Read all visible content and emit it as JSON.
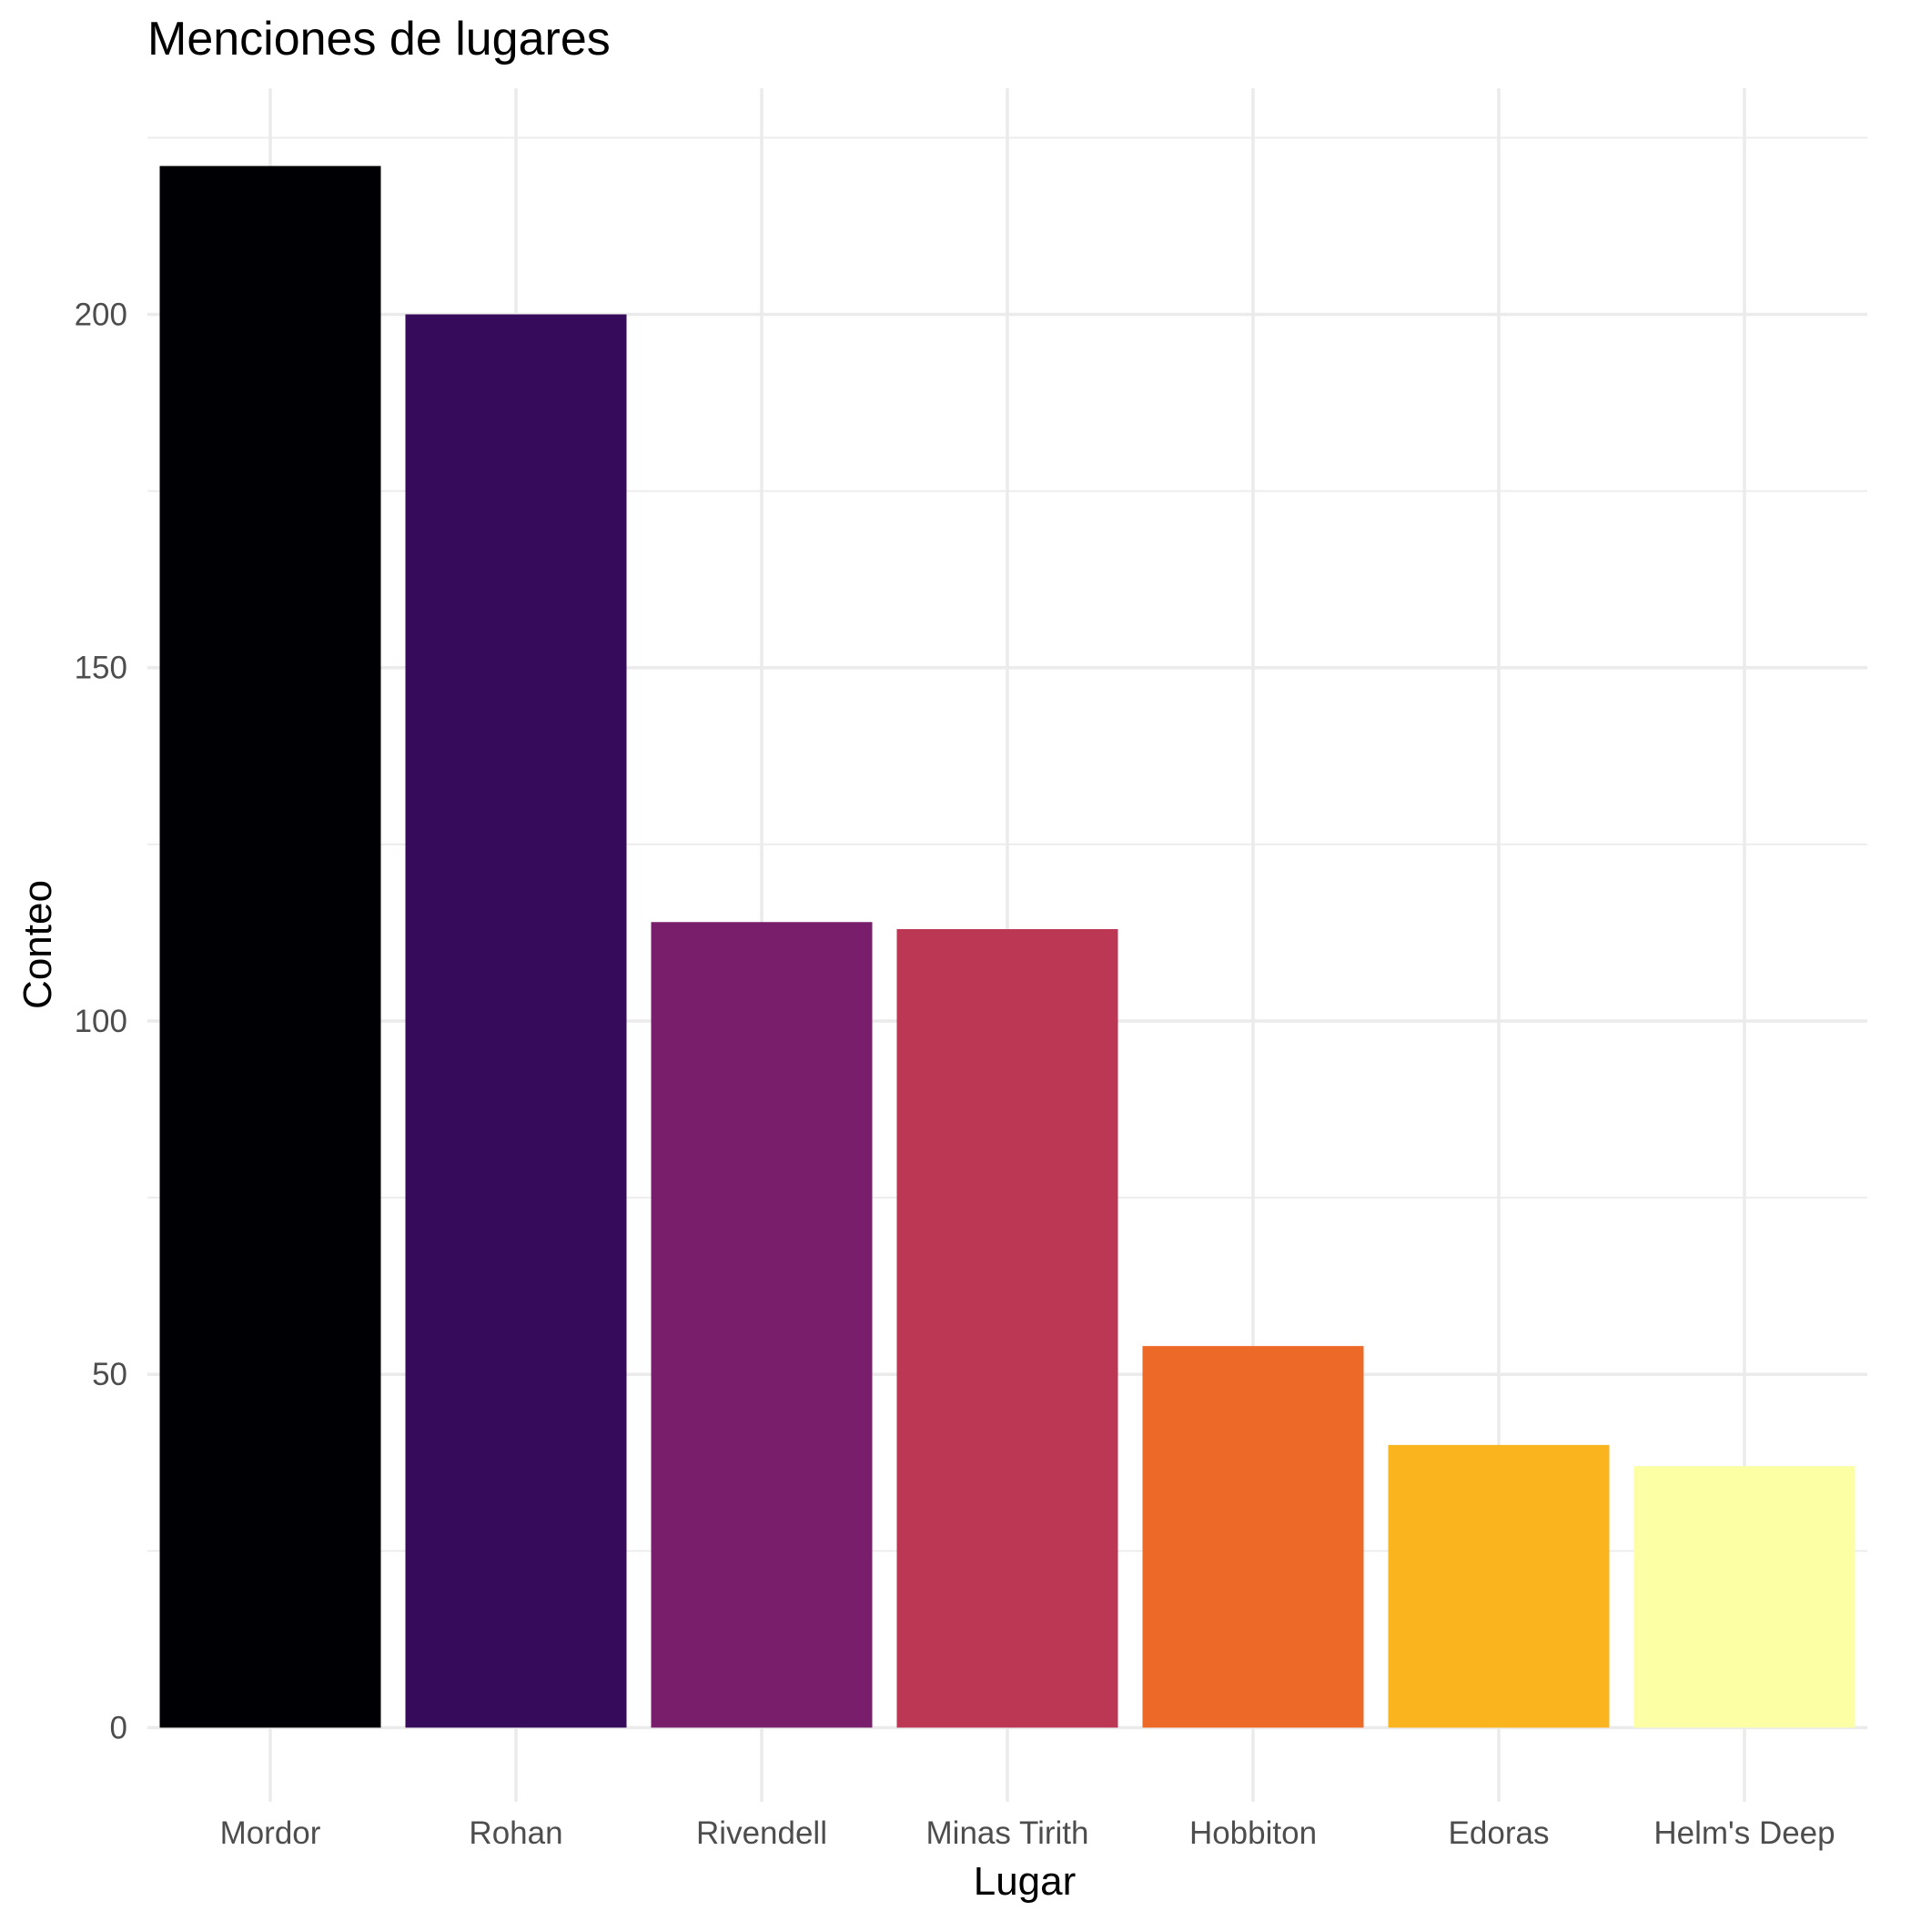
{
  "chart_data": {
    "type": "bar",
    "title": "Menciones de lugares",
    "xlabel": "Lugar",
    "ylabel": "Conteo",
    "categories": [
      "Mordor",
      "Rohan",
      "Rivendell",
      "Minas Tirith",
      "Hobbiton",
      "Edoras",
      "Helm's Deep"
    ],
    "values": [
      221,
      200,
      114,
      113,
      54,
      40,
      37
    ],
    "colors": [
      "#000004",
      "#370B5C",
      "#781E6B",
      "#BB3754",
      "#ED6928",
      "#FAB51E",
      "#FCFFA4"
    ],
    "ylim": [
      -10.5,
      232
    ],
    "yticks": [
      0,
      50,
      100,
      150,
      200
    ],
    "grid": true,
    "legend": "none"
  }
}
